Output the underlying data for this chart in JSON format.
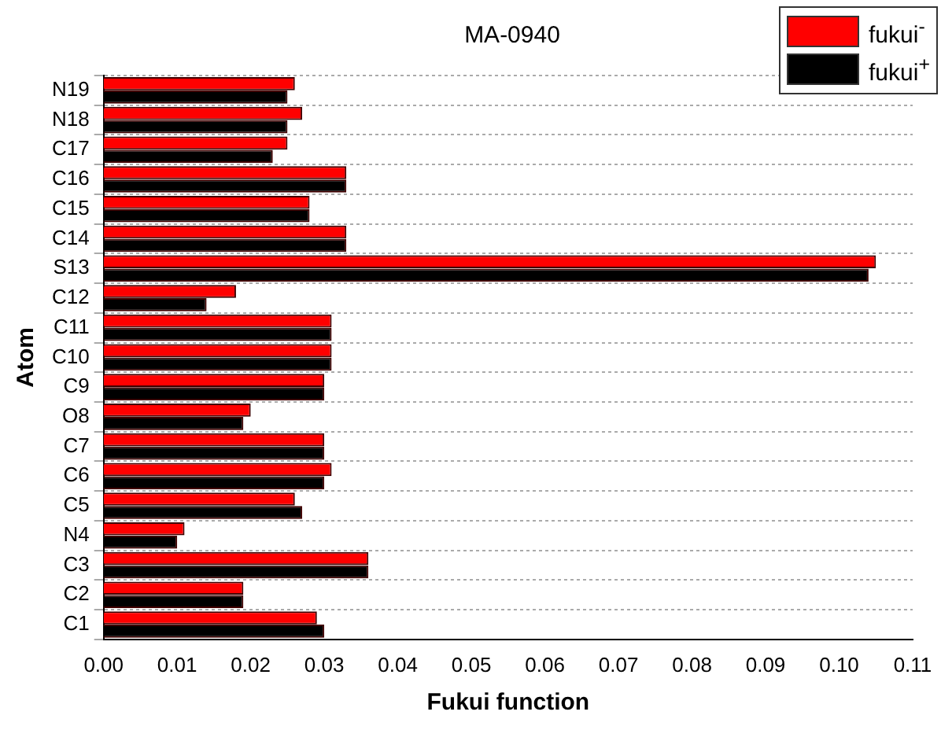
{
  "chart_data": {
    "type": "bar",
    "orientation": "horizontal",
    "title": "MA-0940",
    "xlabel": "Fukui function",
    "ylabel": "Atom",
    "categories": [
      "N19",
      "N18",
      "C17",
      "C16",
      "C15",
      "C14",
      "S13",
      "C12",
      "C11",
      "C10",
      "C9",
      "O8",
      "C7",
      "C6",
      "C5",
      "N4",
      "C3",
      "C2",
      "C1"
    ],
    "series": [
      {
        "name": "fukui$^{-}$",
        "color": "#ff0000",
        "values": [
          0.026,
          0.027,
          0.025,
          0.033,
          0.028,
          0.033,
          0.105,
          0.018,
          0.031,
          0.031,
          0.03,
          0.02,
          0.03,
          0.031,
          0.026,
          0.011,
          0.036,
          0.019,
          0.029
        ]
      },
      {
        "name": "fukui$^{+}$",
        "color": "#000000",
        "values": [
          0.025,
          0.025,
          0.023,
          0.033,
          0.028,
          0.033,
          0.104,
          0.014,
          0.031,
          0.031,
          0.03,
          0.019,
          0.03,
          0.03,
          0.027,
          0.01,
          0.036,
          0.019,
          0.03
        ]
      }
    ],
    "xlim": [
      0,
      0.11
    ],
    "xticks": [
      {
        "value": 0,
        "label": "0.00"
      },
      0.01,
      0.02,
      0.03,
      0.04,
      0.05,
      0.06,
      0.07,
      0.08,
      0.09,
      {
        "value": 0.1,
        "label": "0.10"
      },
      0.11
    ],
    "grid": "y",
    "legend": "top right"
  }
}
